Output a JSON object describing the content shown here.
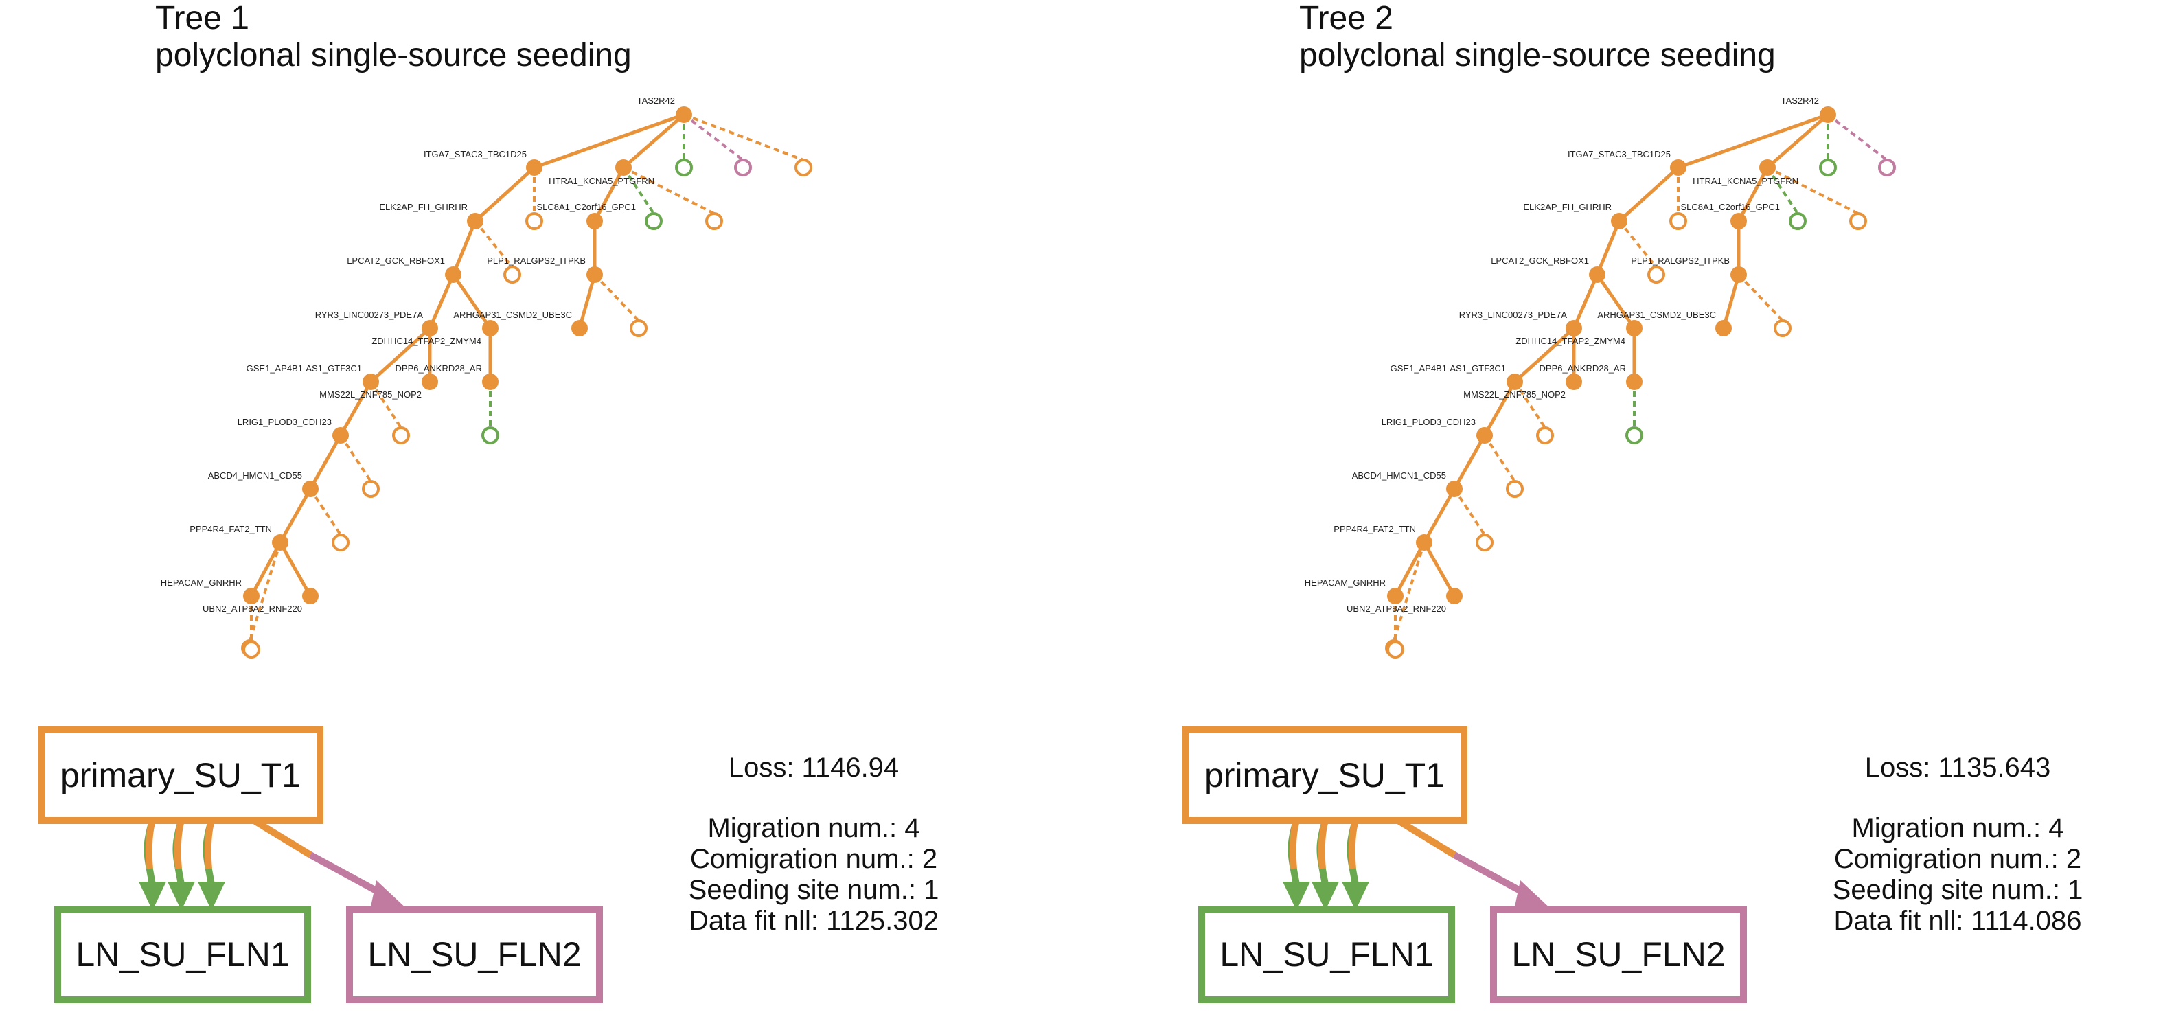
{
  "colors": {
    "primary": "#E8923A",
    "ln_fln1": "#6AA84F",
    "ln_fln2": "#C27BA0"
  },
  "panels": [
    {
      "title": "Tree 1",
      "subtitle": "polyclonal single-source seeding",
      "stats": {
        "loss": "Loss: 1146.94",
        "migration": "Migration num.: 4",
        "comigration": "Comigration num.: 2",
        "seeding": "Seeding site num.: 1",
        "datafit": "Data fit nll: 1125.302"
      },
      "migration_graph": {
        "primary": "primary_SU_T1",
        "targets": [
          "LN_SU_FLN1",
          "LN_SU_FLN2"
        ],
        "edges": [
          {
            "from": "primary_SU_T1",
            "to": "LN_SU_FLN1",
            "count": 3
          },
          {
            "from": "primary_SU_T1",
            "to": "LN_SU_FLN2",
            "count": 1
          }
        ]
      }
    },
    {
      "title": "Tree 2",
      "subtitle": "polyclonal single-source seeding",
      "stats": {
        "loss": "Loss: 1135.643",
        "migration": "Migration num.: 4",
        "comigration": "Comigration num.: 2",
        "seeding": "Seeding site num.: 1",
        "datafit": "Data fit nll: 1114.086"
      },
      "migration_graph": {
        "primary": "primary_SU_T1",
        "targets": [
          "LN_SU_FLN1",
          "LN_SU_FLN2"
        ],
        "edges": [
          {
            "from": "primary_SU_T1",
            "to": "LN_SU_FLN1",
            "count": 3
          },
          {
            "from": "primary_SU_T1",
            "to": "LN_SU_FLN2",
            "count": 1
          }
        ]
      }
    }
  ],
  "tree": {
    "nodes": [
      {
        "id": "TAS2R42",
        "label": "TAS2R42"
      },
      {
        "id": "ITGA7_STAC3_TBC1D25",
        "label": "ITGA7_STAC3_TBC1D25"
      },
      {
        "id": "HTRA1_KCNA5_PTGFRN",
        "label": "HTRA1_KCNA5_PTGFRN"
      },
      {
        "id": "ELK2AP_FH_GHRHR",
        "label": "ELK2AP_FH_GHRHR"
      },
      {
        "id": "SLC8A1_C2orf16_GPC1",
        "label": "SLC8A1_C2orf16_GPC1"
      },
      {
        "id": "LPCAT2_GCK_RBFOX1",
        "label": "LPCAT2_GCK_RBFOX1"
      },
      {
        "id": "PLP1_RALGPS2_ITPKB",
        "label": "PLP1_RALGPS2_ITPKB"
      },
      {
        "id": "RYR3_LINC00273_PDE7A",
        "label": "RYR3_LINC00273_PDE7A"
      },
      {
        "id": "ARHGAP31_CSMD2_UBE3C",
        "label": "ARHGAP31_CSMD2_UBE3C"
      },
      {
        "id": "ZDHHC14_TFAP2_ZMYM4",
        "label": "ZDHHC14_TFAP2_ZMYM4"
      },
      {
        "id": "GSE1_AP4B1-AS1_GTF3C1",
        "label": "GSE1_AP4B1-AS1_GTF3C1"
      },
      {
        "id": "DPP6_ANKRD28_AR",
        "label": "DPP6_ANKRD28_AR"
      },
      {
        "id": "MMS22L_ZNF785_NOP2",
        "label": "MMS22L_ZNF785_NOP2"
      },
      {
        "id": "LRIG1_PLOD3_CDH23",
        "label": "LRIG1_PLOD3_CDH23"
      },
      {
        "id": "ABCD4_HMCN1_CD55",
        "label": "ABCD4_HMCN1_CD55"
      },
      {
        "id": "PPP4R4_FAT2_TTN",
        "label": "PPP4R4_FAT2_TTN"
      },
      {
        "id": "HEPACAM_GNRHR",
        "label": "HEPACAM_GNRHR"
      },
      {
        "id": "UBN2_ATP8A2_RNF220",
        "label": "UBN2_ATP8A2_RNF220"
      },
      {
        "id": "n_aux1",
        "label": ""
      },
      {
        "id": "n_aux2",
        "label": ""
      },
      {
        "id": "n_aux3",
        "label": ""
      }
    ],
    "edges": [
      [
        "TAS2R42",
        "ITGA7_STAC3_TBC1D25"
      ],
      [
        "TAS2R42",
        "HTRA1_KCNA5_PTGFRN"
      ],
      [
        "ITGA7_STAC3_TBC1D25",
        "ELK2AP_FH_GHRHR"
      ],
      [
        "HTRA1_KCNA5_PTGFRN",
        "SLC8A1_C2orf16_GPC1"
      ],
      [
        "ELK2AP_FH_GHRHR",
        "LPCAT2_GCK_RBFOX1"
      ],
      [
        "SLC8A1_C2orf16_GPC1",
        "PLP1_RALGPS2_ITPKB"
      ],
      [
        "LPCAT2_GCK_RBFOX1",
        "RYR3_LINC00273_PDE7A"
      ],
      [
        "LPCAT2_GCK_RBFOX1",
        "ARHGAP31_CSMD2_UBE3C"
      ],
      [
        "PLP1_RALGPS2_ITPKB",
        "n_aux1"
      ],
      [
        "RYR3_LINC00273_PDE7A",
        "GSE1_AP4B1-AS1_GTF3C1"
      ],
      [
        "RYR3_LINC00273_PDE7A",
        "ZDHHC14_TFAP2_ZMYM4"
      ],
      [
        "ARHGAP31_CSMD2_UBE3C",
        "DPP6_ANKRD28_AR"
      ],
      [
        "GSE1_AP4B1-AS1_GTF3C1",
        "LRIG1_PLOD3_CDH23"
      ],
      [
        "LRIG1_PLOD3_CDH23",
        "ABCD4_HMCN1_CD55"
      ],
      [
        "ABCD4_HMCN1_CD55",
        "PPP4R4_FAT2_TTN"
      ],
      [
        "PPP4R4_FAT2_TTN",
        "HEPACAM_GNRHR"
      ],
      [
        "PPP4R4_FAT2_TTN",
        "n_aux2"
      ]
    ],
    "leaf_edges": [
      {
        "from": "TAS2R42",
        "site": "ln_fln1"
      },
      {
        "from": "TAS2R42",
        "site": "ln_fln2"
      },
      {
        "from": "TAS2R42",
        "site": "primary"
      },
      {
        "from": "HTRA1_KCNA5_PTGFRN",
        "site": "ln_fln1"
      },
      {
        "from": "HTRA1_KCNA5_PTGFRN",
        "site": "primary"
      },
      {
        "from": "ITGA7_STAC3_TBC1D25",
        "site": "primary"
      },
      {
        "from": "ELK2AP_FH_GHRHR",
        "site": "primary"
      },
      {
        "from": "PLP1_RALGPS2_ITPKB",
        "site": "primary"
      },
      {
        "from": "DPP6_ANKRD28_AR",
        "site": "ln_fln1"
      },
      {
        "from": "GSE1_AP4B1-AS1_GTF3C1",
        "site": "primary"
      },
      {
        "from": "LRIG1_PLOD3_CDH23",
        "site": "primary"
      },
      {
        "from": "ABCD4_HMCN1_CD55",
        "site": "primary"
      },
      {
        "from": "PPP4R4_FAT2_TTN",
        "site": "primary"
      },
      {
        "from": "HEPACAM_GNRHR",
        "site": "primary"
      }
    ]
  }
}
